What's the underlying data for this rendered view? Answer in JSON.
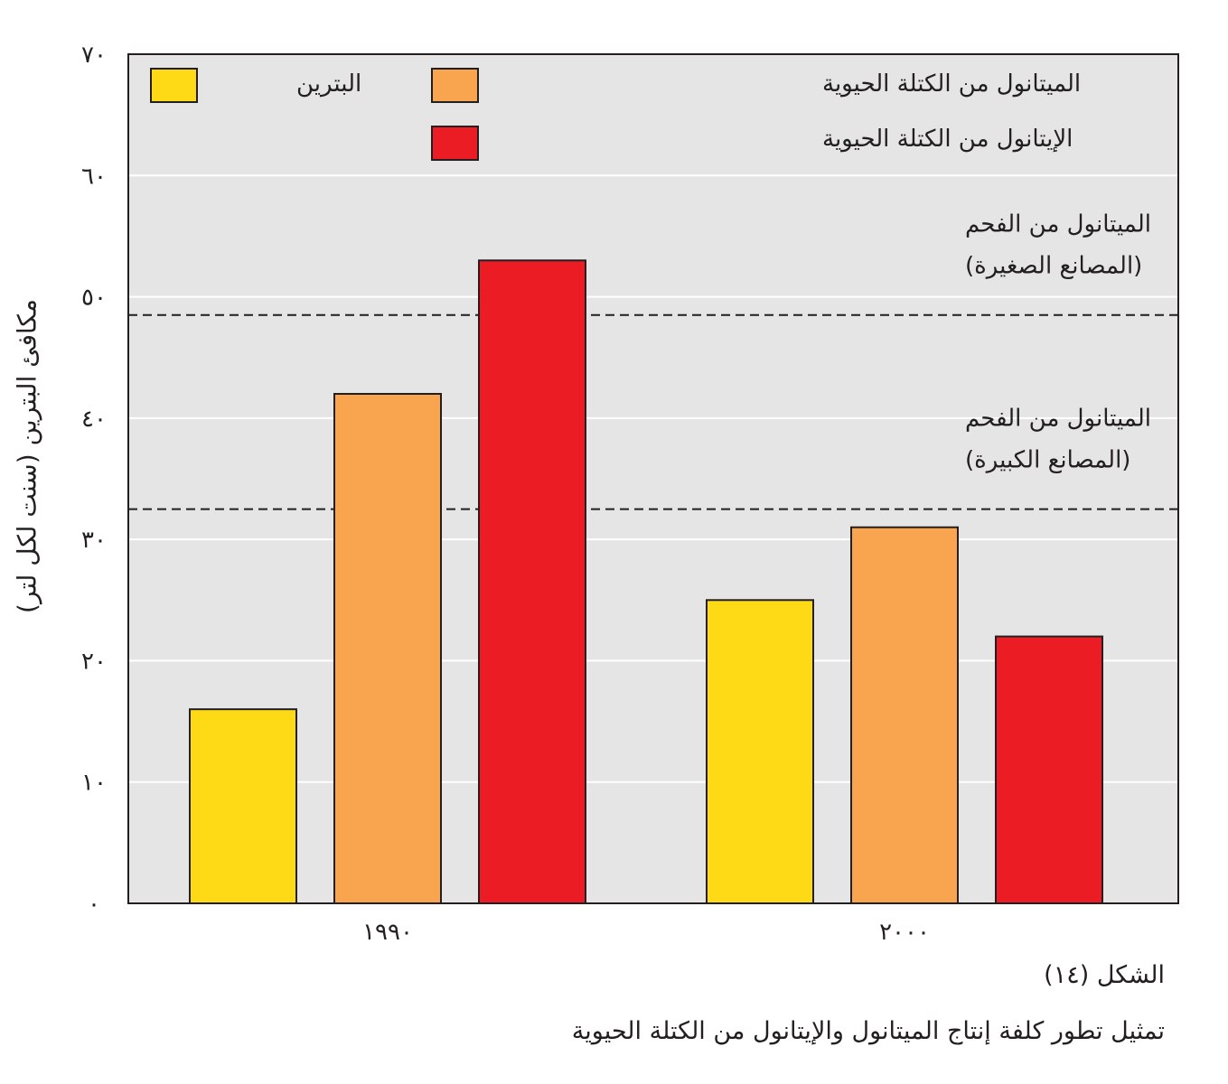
{
  "chart_data": {
    "type": "bar",
    "ylabel": "مكافئ البترين (سنت لكل لتر)",
    "y_ticks": [
      "٠",
      "١٠",
      "٢٠",
      "٣٠",
      "٤٠",
      "٥٠",
      "٦٠",
      "٧٠"
    ],
    "ylim": [
      0,
      70
    ],
    "grid": true,
    "categories": [
      "١٩٩٠",
      "٢٠٠٠"
    ],
    "series": [
      {
        "name": "البترين",
        "color": "#fdd916",
        "values": [
          16,
          25
        ]
      },
      {
        "name": "الميتانول من الكتلة الحيوية",
        "color": "#f9a44f",
        "values": [
          42,
          31
        ]
      },
      {
        "name": "الإيتانول من الكتلة الحيوية",
        "color": "#ec1c24",
        "values": [
          53,
          22
        ]
      }
    ],
    "reference_lines": [
      {
        "value": 48.5,
        "label_line1": "الميتانول من الفحم",
        "label_line2": "(المصانع الصغيرة)"
      },
      {
        "value": 32.5,
        "label_line1": "الميتانول من الفحم",
        "label_line2": "(المصانع الكبيرة)"
      }
    ],
    "legend_position": "top",
    "background_color": "#e5e5e5"
  },
  "figure": {
    "number": "الشكل (١٤)",
    "caption": "تمثيل تطور كلفة إنتاج الميتانول والإيتانول من الكتلة الحيوية"
  }
}
